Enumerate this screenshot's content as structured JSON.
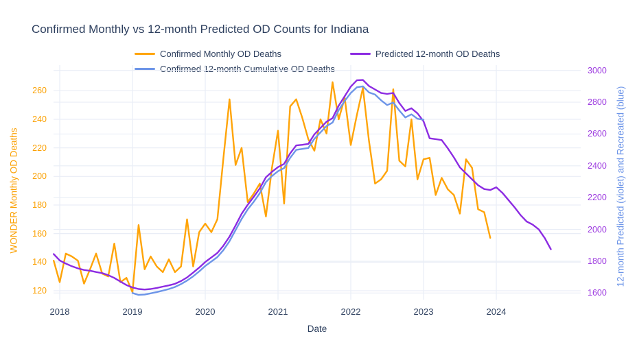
{
  "title": "Confirmed Monthly vs 12-month Predicted OD Counts for Indiana",
  "colors": {
    "monthly_line": "#ffa408",
    "cumulative_line": "#6d95e8",
    "predicted_line": "#8c2be2",
    "left_axis_text": "#fba103",
    "right_tick_text": "#9d3be0",
    "right_title_text": "#6d95e8",
    "dark_text": "#2d3f5e",
    "gridline": "#e9edf6"
  },
  "legend": {
    "items": [
      {
        "label": "Confirmed Monthly OD Deaths",
        "color": "#ffa408"
      },
      {
        "label": "Predicted 12-month OD Deaths",
        "color": "#8c2be2"
      },
      {
        "label": "Confirmed 12-month Cumulative OD Deaths",
        "color": "#6d95e8"
      }
    ]
  },
  "chart_data": {
    "type": "line",
    "title": "Confirmed Monthly vs 12-month Predicted OD Counts for Indiana",
    "xlabel": "Date",
    "x_tick_years": [
      "2018",
      "2019",
      "2020",
      "2021",
      "2022",
      "2023",
      "2024"
    ],
    "grid": true,
    "legend_position": "top-horizontal",
    "y_left": {
      "label": "WONDER Monthly OD Deaths",
      "ticks": [
        120,
        140,
        160,
        180,
        200,
        220,
        240,
        260
      ],
      "range": [
        113,
        267
      ]
    },
    "y_right": {
      "label": "12-month Predicted (violet) and Recreated (blue)",
      "ticks": [
        1600,
        1800,
        2000,
        2200,
        2400,
        2600,
        2800,
        3000
      ],
      "range": [
        1558,
        3035
      ]
    },
    "x_start_month": "2017-12",
    "series": [
      {
        "name": "Confirmed Monthly OD Deaths",
        "axis": "left",
        "color": "#ffa408",
        "start": "2017-12",
        "values": [
          141,
          126,
          146,
          144,
          141,
          125,
          135,
          146,
          132,
          130,
          153,
          126,
          129,
          119,
          166,
          135,
          144,
          137,
          133,
          142,
          133,
          137,
          170,
          137,
          161,
          167,
          161,
          170,
          213,
          254,
          208,
          220,
          182,
          188,
          195,
          172,
          206,
          232,
          181,
          249,
          254,
          241,
          226,
          218,
          240,
          230,
          266,
          240,
          255,
          222,
          243,
          262,
          225,
          195,
          198,
          204,
          261,
          211,
          207,
          240,
          198,
          212,
          213,
          187,
          199,
          191,
          187,
          174,
          212,
          206,
          177,
          175,
          157
        ]
      },
      {
        "name": "Predicted 12-month OD Deaths",
        "axis": "right",
        "color": "#8c2be2",
        "start": "2017-12",
        "values": [
          1845,
          1805,
          1785,
          1768,
          1755,
          1745,
          1740,
          1732,
          1725,
          1712,
          1695,
          1672,
          1650,
          1635,
          1625,
          1622,
          1625,
          1632,
          1640,
          1648,
          1658,
          1675,
          1698,
          1728,
          1760,
          1795,
          1824,
          1852,
          1898,
          1955,
          2025,
          2098,
          2155,
          2205,
          2258,
          2328,
          2362,
          2392,
          2412,
          2478,
          2528,
          2532,
          2538,
          2598,
          2638,
          2678,
          2700,
          2778,
          2838,
          2898,
          2938,
          2940,
          2902,
          2880,
          2858,
          2852,
          2858,
          2795,
          2745,
          2762,
          2730,
          2680,
          2573,
          2568,
          2562,
          2510,
          2453,
          2390,
          2352,
          2315,
          2278,
          2254,
          2248,
          2265,
          2230,
          2185,
          2140,
          2090,
          2050,
          2030,
          2000,
          1945,
          1875
        ]
      },
      {
        "name": "Confirmed 12-month Cumulative OD Deaths",
        "axis": "right",
        "color": "#6d95e8",
        "start": "2019-01",
        "values": [
          1600,
          1588,
          1590,
          1598,
          1606,
          1615,
          1625,
          1638,
          1656,
          1678,
          1705,
          1736,
          1770,
          1798,
          1826,
          1870,
          1926,
          1996,
          2066,
          2126,
          2174,
          2228,
          2298,
          2336,
          2366,
          2386,
          2450,
          2500,
          2506,
          2512,
          2570,
          2610,
          2650,
          2672,
          2750,
          2808,
          2858,
          2894,
          2900,
          2862,
          2848,
          2812,
          2782,
          2798,
          2748,
          2704,
          2724,
          2696,
          2690
        ]
      }
    ]
  }
}
